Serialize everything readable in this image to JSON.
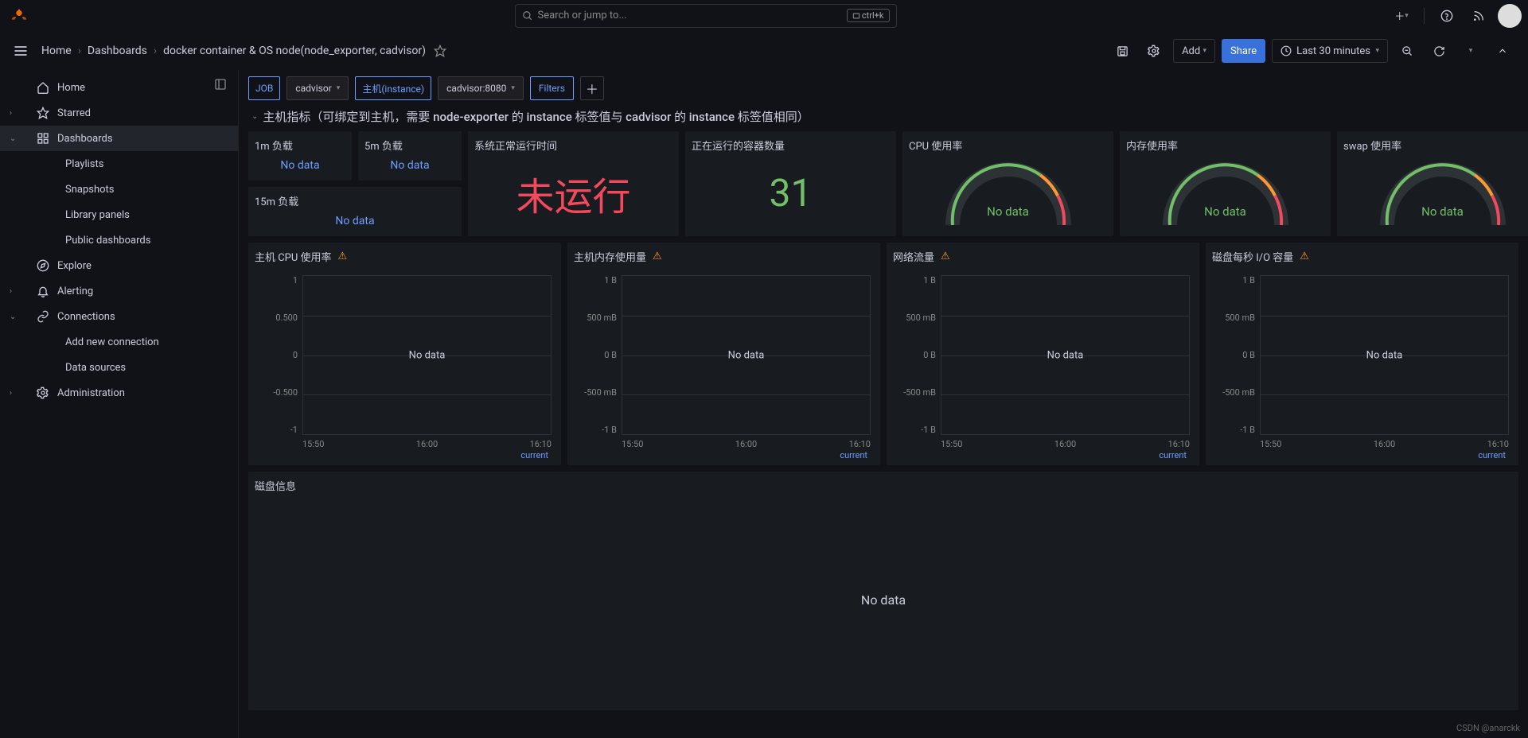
{
  "topbar": {
    "search_placeholder": "Search or jump to...",
    "kbd_hint": "ctrl+k"
  },
  "breadcrumb": {
    "home": "Home",
    "dashboards": "Dashboards",
    "current": "docker container & OS node(node_exporter, cadvisor)"
  },
  "toolbar": {
    "add_label": "Add",
    "share_label": "Share",
    "time_range": "Last 30 minutes"
  },
  "sidebar": {
    "items": [
      {
        "label": "Home",
        "icon": "home",
        "chev": ""
      },
      {
        "label": "Starred",
        "icon": "star",
        "chev": "›"
      },
      {
        "label": "Dashboards",
        "icon": "apps",
        "chev": "⌄",
        "active": true
      },
      {
        "label": "Playlists",
        "sub": true
      },
      {
        "label": "Snapshots",
        "sub": true
      },
      {
        "label": "Library panels",
        "sub": true
      },
      {
        "label": "Public dashboards",
        "sub": true
      },
      {
        "label": "Explore",
        "icon": "compass",
        "chev": ""
      },
      {
        "label": "Alerting",
        "icon": "bell",
        "chev": "›"
      },
      {
        "label": "Connections",
        "icon": "link",
        "chev": "⌄"
      },
      {
        "label": "Add new connection",
        "sub": true
      },
      {
        "label": "Data sources",
        "sub": true
      },
      {
        "label": "Administration",
        "icon": "gear",
        "chev": "›"
      }
    ]
  },
  "variables": {
    "job_label": "JOB",
    "job_value": "cadvisor",
    "host_label": "主机(instance)",
    "host_value": "cadvisor:8080",
    "filters_label": "Filters"
  },
  "section_row_title": "主机指标（可绑定到主机，需要 node-exporter 的 instance 标签值与 cadvisor 的 instance 标签值相同）",
  "panels": {
    "load1": {
      "title": "1m 负载",
      "value": "No data"
    },
    "load5": {
      "title": "5m 负载",
      "value": "No data"
    },
    "load15": {
      "title": "15m 负载",
      "value": "No data"
    },
    "uptime": {
      "title": "系统正常运行时间",
      "value": "未运行"
    },
    "running": {
      "title": "正在运行的容器数量",
      "value": "31"
    },
    "cpu": {
      "title": "CPU 使用率",
      "value": "No data"
    },
    "mem": {
      "title": "内存使用率",
      "value": "No data"
    },
    "swap": {
      "title": "swap 使用率",
      "value": "No data"
    }
  },
  "charts": {
    "yticks_num": [
      "1",
      "0.500",
      "0",
      "-0.500",
      "-1"
    ],
    "yticks_bytes": [
      "1 B",
      "500 mB",
      "0 B",
      "-500 mB",
      "-1 B"
    ],
    "xticks": [
      "15:50",
      "16:00",
      "16:10"
    ],
    "nodata": "No data",
    "legend": "current",
    "items": [
      {
        "title": "主机 CPU 使用率",
        "y": "num"
      },
      {
        "title": "主机内存使用量",
        "y": "bytes"
      },
      {
        "title": "网络流量",
        "y": "bytes"
      },
      {
        "title": "磁盘每秒 I/O 容量",
        "y": "bytes"
      }
    ]
  },
  "disk_panel": {
    "title": "磁盘信息",
    "value": "No data"
  },
  "watermark": "CSDN @anarckk",
  "colors": {
    "gauge_green": "#73bf69",
    "gauge_orange": "#ff9830",
    "gauge_red": "#f2495c",
    "bg_panel": "#181b1f",
    "link_blue": "#6e9fff"
  }
}
